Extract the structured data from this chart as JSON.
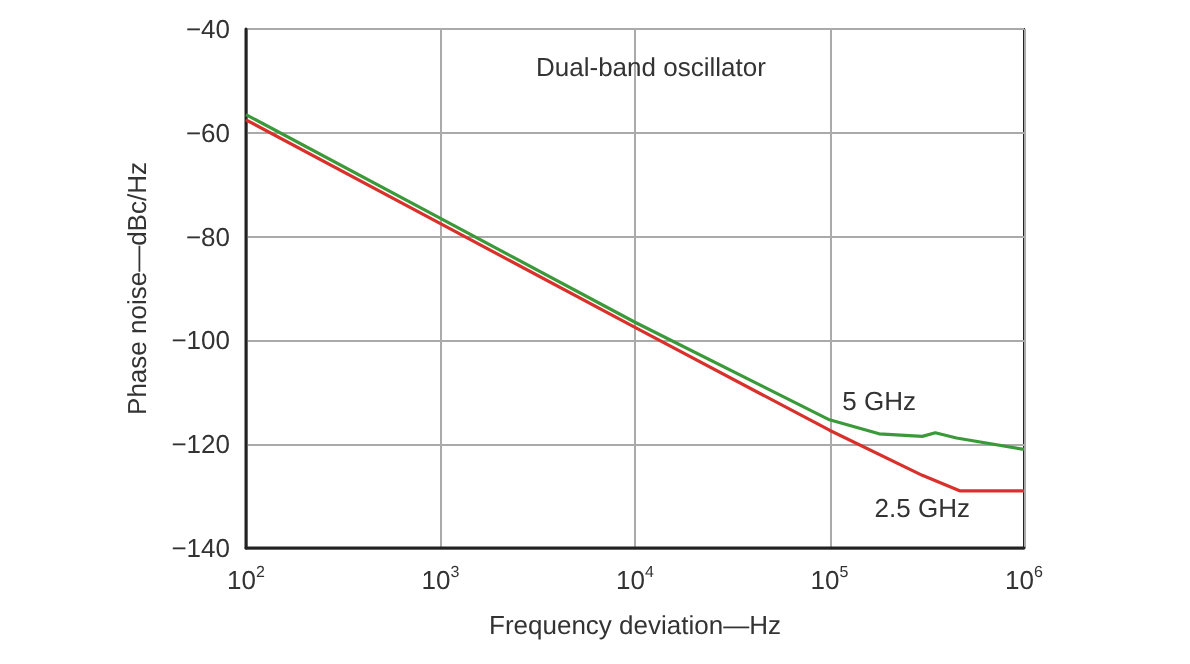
{
  "chart_data": {
    "type": "line",
    "title": "Dual-band oscillator",
    "xlabel": "Frequency deviation—Hz",
    "ylabel": "Phase noise—dBc/Hz",
    "log": "x",
    "xlim": [
      100,
      1000000
    ],
    "xticks": [
      {
        "value": 100,
        "label": "10$^{2}$"
      },
      {
        "value": 1000,
        "label": "10$^{3}$"
      },
      {
        "value": 10000,
        "label": "10$^{4}$"
      },
      {
        "value": 100000,
        "label": "10$^{5}$"
      },
      {
        "value": 1000000,
        "label": "10$^{6}$"
      }
    ],
    "ylim": [
      -140,
      -40
    ],
    "yticks": [
      -140,
      -120,
      -100,
      -80,
      -60,
      -40
    ],
    "grid": true,
    "legend": false,
    "marker": "none",
    "line_style": "solid",
    "series": [
      {
        "name": "5 GHz",
        "color": "#3a9a3a",
        "x": [
          100,
          1000,
          10000,
          100000,
          180000,
          300000,
          350000,
          450000,
          1000000
        ],
        "values": [
          -56.5,
          -76.5,
          -96.5,
          -115.3,
          -118,
          -118.5,
          -117.8,
          -118.8,
          -121
        ]
      },
      {
        "name": "2.5 GHz",
        "color": "#d8302a",
        "x": [
          100,
          1000,
          10000,
          100000,
          300000,
          470000,
          1000000
        ],
        "values": [
          -57.5,
          -77.5,
          -97.5,
          -117.3,
          -126,
          -129,
          -129
        ]
      }
    ]
  }
}
